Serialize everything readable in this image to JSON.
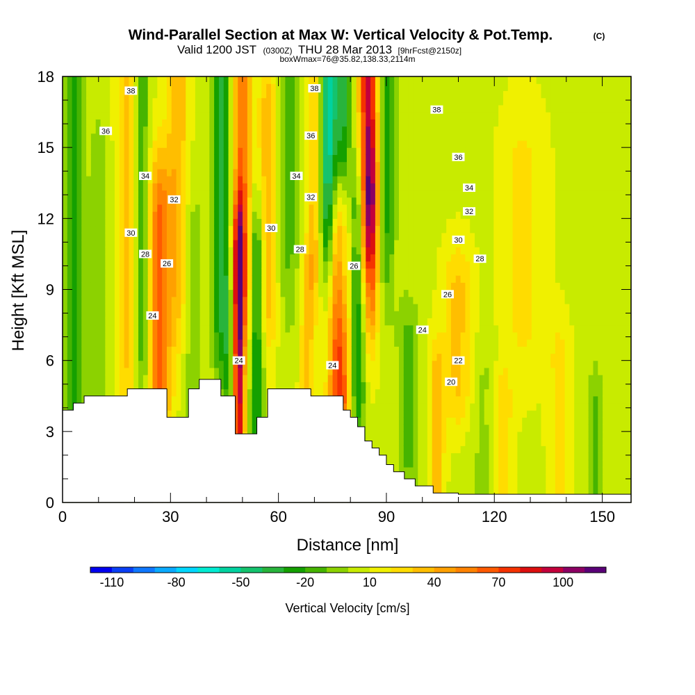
{
  "header": {
    "title": "Wind-Parallel Section at Max W: Vertical Velocity & Pot.Temp.",
    "copyright": "(C)",
    "valid_prefix": "Valid 1200 JST",
    "valid_utc": "(0300Z)",
    "valid_date": "THU 28 Mar 2013",
    "forecast": "[9hrFcst@2150z]",
    "boxline": "boxWmax=76@35.82,138.33,2114m"
  },
  "chart_data": {
    "type": "heatmap",
    "title": "Wind-Parallel Section at Max W: Vertical Velocity & Pot.Temp.",
    "xlabel": "Distance [nm]",
    "ylabel": "Height [Kft MSL]",
    "xlim": [
      0,
      158
    ],
    "ylim": [
      0,
      18
    ],
    "x_ticks": [
      0,
      30,
      60,
      90,
      120,
      150
    ],
    "y_ticks": [
      0,
      3,
      6,
      9,
      12,
      15,
      18
    ],
    "colorbar": {
      "label": "Vertical Velocity [cm/s]",
      "tick_labels": [
        "-110",
        "-80",
        "-50",
        "-20",
        "10",
        "40",
        "70",
        "100"
      ],
      "levels": [
        -120,
        -110,
        -100,
        -90,
        -80,
        -70,
        -60,
        -50,
        -40,
        -30,
        -20,
        -10,
        0,
        10,
        20,
        30,
        40,
        50,
        60,
        70,
        80,
        90,
        100,
        110
      ],
      "colors": [
        "#0000f0",
        "#0a3ff5",
        "#0f78ff",
        "#0aaaff",
        "#00d7ff",
        "#00ebd2",
        "#00d2a0",
        "#14c36e",
        "#28b43c",
        "#14a000",
        "#46b400",
        "#8cd200",
        "#c8eb00",
        "#f0f000",
        "#ffdc00",
        "#ffbe00",
        "#ffa000",
        "#ff8200",
        "#ff5a00",
        "#f53200",
        "#dc0f0f",
        "#c3003c",
        "#8c0064",
        "#5a0078"
      ]
    },
    "background_w": 8,
    "w_features": [
      {
        "x": 3,
        "z0": 5.5,
        "z1": 18,
        "w": -32,
        "wx": 2.5,
        "wz": 5
      },
      {
        "x": 10,
        "z0": 5,
        "z1": 13,
        "w": -15,
        "wx": 3,
        "wz": 4
      },
      {
        "x": 18,
        "z0": 8,
        "z1": 18,
        "w": 28,
        "wx": 3,
        "wz": 5
      },
      {
        "x": 22,
        "z0": 7,
        "z1": 17,
        "w": -28,
        "wx": 2,
        "wz": 4
      },
      {
        "x": 27,
        "z0": 5,
        "z1": 12,
        "w": 52,
        "wx": 3,
        "wz": 3
      },
      {
        "x": 32,
        "z0": 10,
        "z1": 18,
        "w": 30,
        "wx": 3,
        "wz": 4
      },
      {
        "x": 36,
        "z0": 5,
        "z1": 11,
        "w": -15,
        "wx": 3,
        "wz": 3
      },
      {
        "x": 44,
        "z0": 9,
        "z1": 18,
        "w": -42,
        "wx": 2.5,
        "wz": 4
      },
      {
        "x": 46,
        "z0": 5,
        "z1": 8,
        "w": -22,
        "wx": 1.5,
        "wz": 2
      },
      {
        "x": 49,
        "z0": 3.5,
        "z1": 10,
        "w": 82,
        "wx": 1.5,
        "wz": 3
      },
      {
        "x": 50,
        "z0": 10,
        "z1": 18,
        "w": 50,
        "wx": 2.5,
        "wz": 4
      },
      {
        "x": 54,
        "z0": 4,
        "z1": 10,
        "w": -40,
        "wx": 2,
        "wz": 3
      },
      {
        "x": 57,
        "z0": 9,
        "z1": 16,
        "w": 30,
        "wx": 2.5,
        "wz": 3
      },
      {
        "x": 63,
        "z0": 11,
        "z1": 18,
        "w": -20,
        "wx": 3,
        "wz": 4
      },
      {
        "x": 68,
        "z0": 5,
        "z1": 9,
        "w": 25,
        "wx": 2,
        "wz": 2
      },
      {
        "x": 70,
        "z0": 11,
        "z1": 18,
        "w": 28,
        "wx": 2,
        "wz": 3
      },
      {
        "x": 74,
        "z0": 13,
        "z1": 18,
        "w": -65,
        "wx": 2.5,
        "wz": 4
      },
      {
        "x": 77,
        "z0": 5,
        "z1": 11,
        "w": 72,
        "wx": 3,
        "wz": 3
      },
      {
        "x": 78,
        "z0": 11,
        "z1": 18,
        "w": -40,
        "wx": 2,
        "wz": 4
      },
      {
        "x": 82,
        "z0": 5,
        "z1": 12,
        "w": -40,
        "wx": 2,
        "wz": 3
      },
      {
        "x": 85,
        "z0": 13,
        "z1": 18,
        "w": 85,
        "wx": 2.5,
        "wz": 4
      },
      {
        "x": 86,
        "z0": 9,
        "z1": 13,
        "w": 30,
        "wx": 2,
        "wz": 3
      },
      {
        "x": 90,
        "z0": 12,
        "z1": 18,
        "w": -30,
        "wx": 2.5,
        "wz": 4
      },
      {
        "x": 96,
        "z0": 2,
        "z1": 7,
        "w": -20,
        "wx": 3,
        "wz": 2
      },
      {
        "x": 104,
        "z0": 1,
        "z1": 5,
        "w": 30,
        "wx": 2,
        "wz": 2
      },
      {
        "x": 110,
        "z0": 5,
        "z1": 9,
        "w": 25,
        "wx": 4,
        "wz": 2
      },
      {
        "x": 118,
        "z0": 0.5,
        "z1": 5,
        "w": -12,
        "wx": 5,
        "wz": 2
      },
      {
        "x": 122,
        "z0": 0.5,
        "z1": 4,
        "w": 25,
        "wx": 3,
        "wz": 2
      },
      {
        "x": 128,
        "z0": 8,
        "z1": 14,
        "w": 15,
        "wx": 6,
        "wz": 3
      },
      {
        "x": 138,
        "z0": 0.5,
        "z1": 6,
        "w": 15,
        "wx": 3,
        "wz": 2
      },
      {
        "x": 148,
        "z0": 0.5,
        "z1": 4,
        "w": -20,
        "wx": 2,
        "wz": 2
      }
    ],
    "terrain": [
      [
        0,
        3.9
      ],
      [
        3,
        4.2
      ],
      [
        6,
        4.5
      ],
      [
        10,
        4.5
      ],
      [
        14,
        4.5
      ],
      [
        18,
        4.8
      ],
      [
        22,
        4.8
      ],
      [
        26,
        4.8
      ],
      [
        29,
        3.6
      ],
      [
        33,
        3.6
      ],
      [
        35,
        4.8
      ],
      [
        38,
        5.2
      ],
      [
        42,
        5.2
      ],
      [
        44,
        4.5
      ],
      [
        46,
        4.5
      ],
      [
        48,
        2.9
      ],
      [
        51,
        2.9
      ],
      [
        54,
        3.6
      ],
      [
        57,
        4.8
      ],
      [
        61,
        4.8
      ],
      [
        66,
        4.8
      ],
      [
        69,
        4.5
      ],
      [
        72,
        4.5
      ],
      [
        76,
        4.5
      ],
      [
        78,
        3.9
      ],
      [
        80,
        3.6
      ],
      [
        82,
        3.2
      ],
      [
        84,
        2.6
      ],
      [
        86,
        2.3
      ],
      [
        88,
        2.0
      ],
      [
        90,
        1.6
      ],
      [
        92,
        1.3
      ],
      [
        95,
        1.0
      ],
      [
        98,
        0.7
      ],
      [
        103,
        0.4
      ],
      [
        110,
        0.35
      ],
      [
        125,
        0.35
      ],
      [
        140,
        0.35
      ],
      [
        158,
        0.35
      ]
    ],
    "theta_levels": [
      20,
      21,
      22,
      23,
      24,
      25,
      26,
      27,
      28,
      29,
      30,
      31,
      32,
      33,
      34,
      35,
      36,
      37,
      38,
      39
    ],
    "theta_profile": [
      [
        0,
        16.5
      ],
      [
        5,
        18.5
      ],
      [
        10,
        20.5
      ],
      [
        14,
        22.5
      ],
      [
        22,
        27.5
      ],
      [
        26,
        28.6
      ],
      [
        30,
        29.7
      ],
      [
        40,
        32.3
      ],
      [
        50,
        35
      ],
      [
        56,
        36.6
      ],
      [
        60,
        37.5
      ],
      [
        65,
        38.6
      ],
      [
        70,
        39.8
      ],
      [
        80,
        42.3
      ],
      [
        90,
        44.5
      ],
      [
        100,
        46.9
      ],
      [
        110,
        49.4
      ]
    ],
    "theta_labels": [
      {
        "x": 19,
        "z": 17.4,
        "text": "38"
      },
      {
        "x": 12,
        "z": 15.7,
        "text": "36"
      },
      {
        "x": 23,
        "z": 13.8,
        "text": "34"
      },
      {
        "x": 31,
        "z": 12.8,
        "text": "32"
      },
      {
        "x": 19,
        "z": 11.4,
        "text": "30"
      },
      {
        "x": 23,
        "z": 10.5,
        "text": "28"
      },
      {
        "x": 29,
        "z": 10.1,
        "text": "26"
      },
      {
        "x": 25,
        "z": 7.9,
        "text": "24"
      },
      {
        "x": 49,
        "z": 6.0,
        "text": "24"
      },
      {
        "x": 58,
        "z": 11.6,
        "text": "30"
      },
      {
        "x": 65,
        "z": 13.8,
        "text": "34"
      },
      {
        "x": 69,
        "z": 12.9,
        "text": "32"
      },
      {
        "x": 66,
        "z": 10.7,
        "text": "28"
      },
      {
        "x": 70,
        "z": 17.5,
        "text": "38"
      },
      {
        "x": 69,
        "z": 15.5,
        "text": "36"
      },
      {
        "x": 75,
        "z": 5.8,
        "text": "24"
      },
      {
        "x": 81,
        "z": 10.0,
        "text": "26"
      },
      {
        "x": 104,
        "z": 16.6,
        "text": "38"
      },
      {
        "x": 110,
        "z": 14.6,
        "text": "36"
      },
      {
        "x": 113,
        "z": 13.3,
        "text": "34"
      },
      {
        "x": 113,
        "z": 12.3,
        "text": "32"
      },
      {
        "x": 110,
        "z": 11.1,
        "text": "30"
      },
      {
        "x": 116,
        "z": 10.3,
        "text": "28"
      },
      {
        "x": 107,
        "z": 8.8,
        "text": "26"
      },
      {
        "x": 100,
        "z": 7.3,
        "text": "24"
      },
      {
        "x": 110,
        "z": 6.0,
        "text": "22"
      },
      {
        "x": 108,
        "z": 5.1,
        "text": "20"
      }
    ],
    "grid": false,
    "legend": "bottom"
  }
}
